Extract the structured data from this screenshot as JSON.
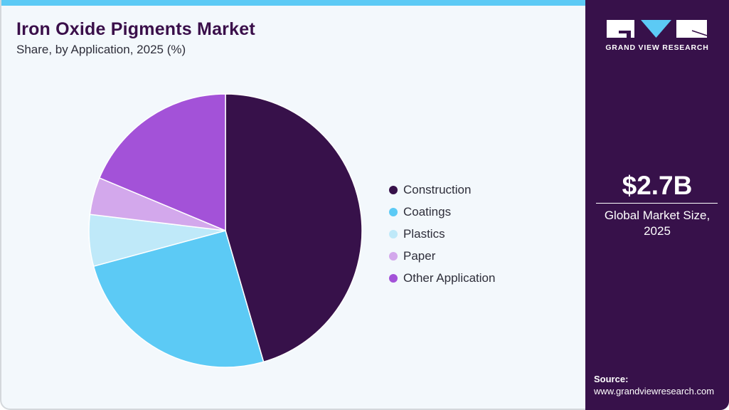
{
  "header": {
    "title": "Iron Oxide Pigments Market",
    "subtitle": "Share, by Application, 2025 (%)"
  },
  "legend": [
    {
      "label": "Construction",
      "color": "#37114a"
    },
    {
      "label": "Coatings",
      "color": "#5ccaf5"
    },
    {
      "label": "Plastics",
      "color": "#bfe9f9"
    },
    {
      "label": "Paper",
      "color": "#d3a8ec"
    },
    {
      "label": "Other Application",
      "color": "#a352d8"
    }
  ],
  "sidebar": {
    "brand": "GRAND VIEW RESEARCH",
    "market_value": "$2.7B",
    "market_label_line1": "Global Market Size,",
    "market_label_line2": "2025",
    "source_label": "Source:",
    "source_url": "www.grandviewresearch.com"
  },
  "colors": {
    "accent_bar": "#5ccaf5",
    "sidebar_bg": "#37114a",
    "panel_bg": "#f3f8fc",
    "title": "#3a0f4a"
  },
  "chart_data": {
    "type": "pie",
    "title": "Iron Oxide Pigments Market",
    "subtitle": "Share, by Application, 2025 (%)",
    "categories": [
      "Construction",
      "Coatings",
      "Plastics",
      "Paper",
      "Other Application"
    ],
    "values": [
      45.5,
      25.3,
      6.1,
      4.4,
      18.7
    ],
    "colors": [
      "#37114a",
      "#5ccaf5",
      "#bfe9f9",
      "#d3a8ec",
      "#a352d8"
    ],
    "start_angle": "12 o'clock, clockwise",
    "legend_position": "right"
  }
}
